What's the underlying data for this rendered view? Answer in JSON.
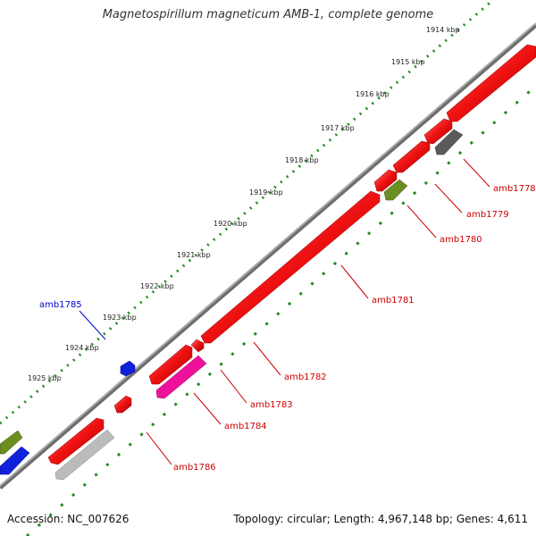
{
  "title": "Magnetospirillum magneticum AMB-1, complete genome",
  "footer": {
    "accession": "Accession: NC_007626",
    "summary": "Topology: circular; Length: 4,967,148 bp; Genes: 4,611"
  },
  "colors": {
    "forward_gene": "#ee1111",
    "reverse_gene_pink": "#ee1199",
    "reverse_gene_olive": "#6b8e23",
    "reverse_gene_gray": "#666666",
    "reverse_gene_light": "#bbbbbb",
    "forward_gene_blue": "#1122dd",
    "backbone": "#888888",
    "tick_dots": "#228b22",
    "label_red": "#cc0000",
    "label_blue": "#0000cc"
  },
  "kbp_ticks": [
    "1914 kbp",
    "1915 kbp",
    "1916 kbp",
    "1917 kbp",
    "1918 kbp",
    "1919 kbp",
    "1920 kbp",
    "1921 kbp",
    "1922 kbp",
    "1923 kbp",
    "1924 kbp",
    "1925 kbp"
  ],
  "gene_labels": [
    {
      "id": "amb1778",
      "color": "red"
    },
    {
      "id": "amb1779",
      "color": "red"
    },
    {
      "id": "amb1780",
      "color": "red"
    },
    {
      "id": "amb1781",
      "color": "red"
    },
    {
      "id": "amb1782",
      "color": "red"
    },
    {
      "id": "amb1783",
      "color": "red"
    },
    {
      "id": "amb1784",
      "color": "red"
    },
    {
      "id": "amb1785",
      "color": "blue"
    },
    {
      "id": "amb1786",
      "color": "red"
    }
  ]
}
